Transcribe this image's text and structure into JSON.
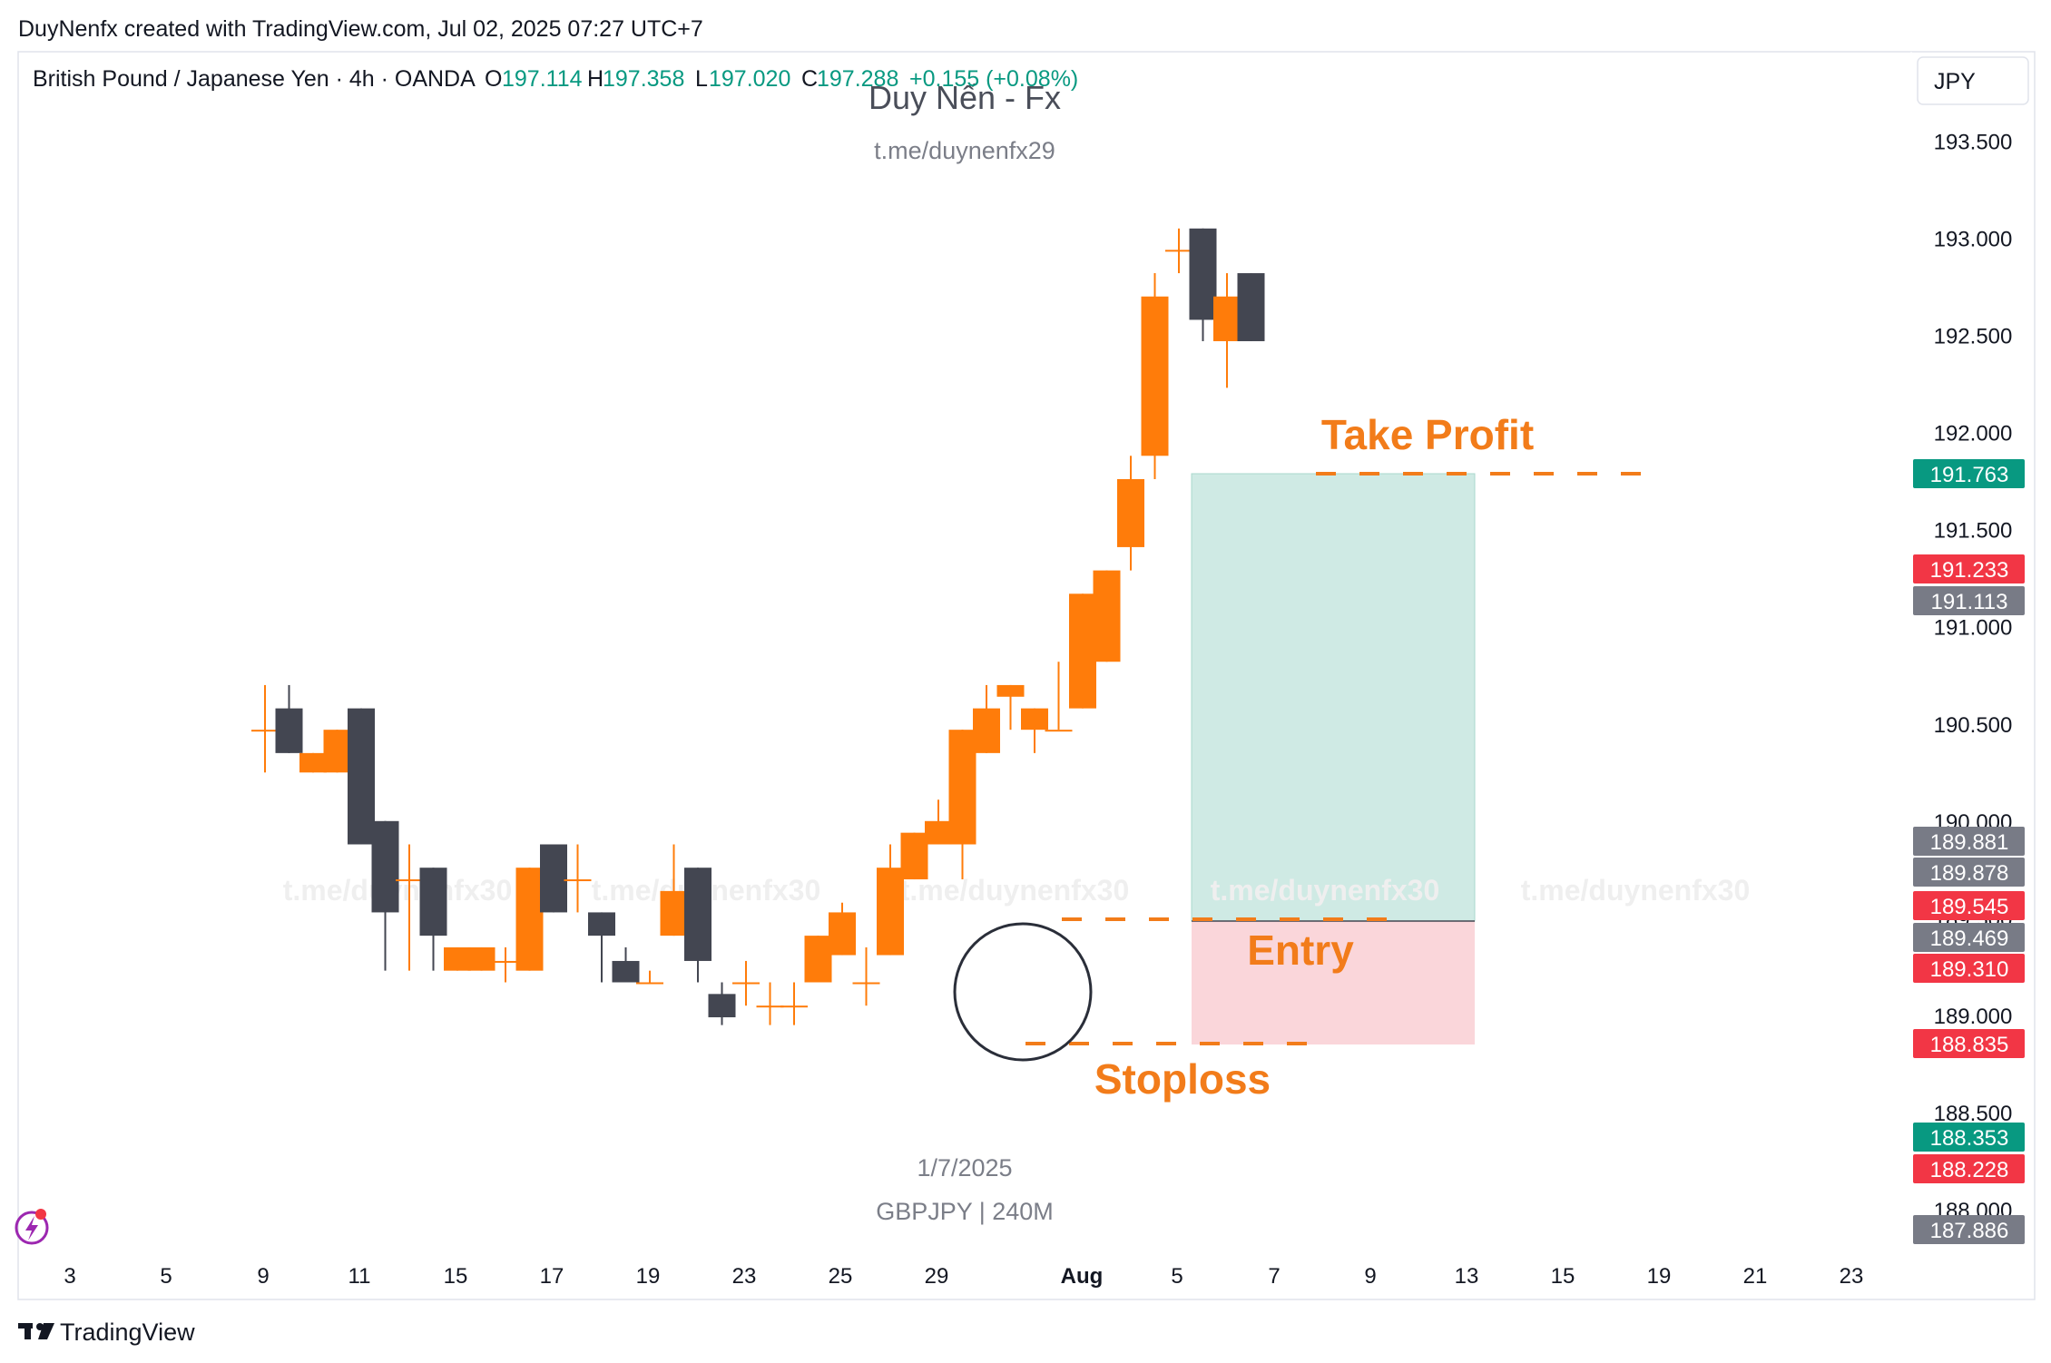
{
  "header": {
    "credit": "DuyNenfx created with TradingView.com, Jul 02, 2025 07:27 UTC+7",
    "symbol_desc": "British Pound / Japanese Yen · 4h · OANDA",
    "o_label": "O",
    "o_value": "197.114",
    "h_label": "H",
    "h_value": "197.358",
    "l_label": "L",
    "l_value": "197.020",
    "c_label": "C",
    "c_value": "197.288",
    "change": "+0.155 (+0.08%)"
  },
  "watermark": {
    "title": "Duy Nến - Fx",
    "subtitle": "t.me/duynenfx29",
    "repeat_text": "t.me/duynenfx30",
    "date": "1/7/2025",
    "symbol": "GBPJPY | 240M"
  },
  "currency_button": "JPY",
  "footer": {
    "brand": "TradingView"
  },
  "annotations": {
    "take_profit": "Take Profit",
    "entry": "Entry",
    "stoploss": "Stoploss"
  },
  "colors": {
    "bull": "#FF7C0A",
    "bear": "#434651",
    "profit_zone": "#CFEAE4",
    "loss_zone": "#FAD6DA",
    "green_label": "#089981",
    "red_label": "#F23645",
    "grey_label": "#787B86",
    "annotation": "#F27C1A"
  },
  "chart_data": {
    "type": "candlestick",
    "symbol": "GBPJPY",
    "timeframe": "4h",
    "y_range": [
      187.75,
      193.8
    ],
    "y_ticks": [
      "188.000",
      "188.500",
      "189.000",
      "189.500",
      "190.000",
      "190.500",
      "191.000",
      "191.500",
      "192.000",
      "192.500",
      "193.000",
      "193.500"
    ],
    "x_ticks": [
      "3",
      "5",
      "9",
      "11",
      "15",
      "17",
      "19",
      "23",
      "25",
      "29",
      "Aug",
      "5",
      "7",
      "9",
      "13",
      "15",
      "19",
      "21",
      "23"
    ],
    "price_labels": [
      {
        "value": "191.763",
        "color": "green"
      },
      {
        "value": "191.233",
        "color": "red"
      },
      {
        "value": "191.113",
        "color": "grey"
      },
      {
        "value": "189.881",
        "color": "grey"
      },
      {
        "value": "189.878",
        "color": "grey"
      },
      {
        "value": "189.545",
        "color": "red"
      },
      {
        "value": "189.469",
        "color": "grey"
      },
      {
        "value": "189.310",
        "color": "red"
      },
      {
        "value": "188.835",
        "color": "red"
      },
      {
        "value": "188.353",
        "color": "green"
      },
      {
        "value": "188.228",
        "color": "red"
      },
      {
        "value": "187.886",
        "color": "grey"
      }
    ],
    "candles": [
      {
        "o": 190.47,
        "h": 190.7,
        "l": 190.25,
        "c": 190.47
      },
      {
        "o": 190.58,
        "h": 190.7,
        "l": 190.35,
        "c": 190.35
      },
      {
        "o": 190.25,
        "h": 190.35,
        "l": 190.25,
        "c": 190.35
      },
      {
        "o": 190.25,
        "h": 190.47,
        "l": 190.25,
        "c": 190.47
      },
      {
        "o": 190.58,
        "h": 190.58,
        "l": 189.88,
        "c": 189.88
      },
      {
        "o": 190.0,
        "h": 190.0,
        "l": 189.23,
        "c": 189.53
      },
      {
        "o": 189.7,
        "h": 189.88,
        "l": 189.23,
        "c": 189.7
      },
      {
        "o": 189.76,
        "h": 189.76,
        "l": 189.23,
        "c": 189.41
      },
      {
        "o": 189.23,
        "h": 189.35,
        "l": 189.23,
        "c": 189.35
      },
      {
        "o": 189.23,
        "h": 189.35,
        "l": 189.23,
        "c": 189.35
      },
      {
        "o": 189.28,
        "h": 189.35,
        "l": 189.17,
        "c": 189.28
      },
      {
        "o": 189.23,
        "h": 189.76,
        "l": 189.23,
        "c": 189.76
      },
      {
        "o": 189.88,
        "h": 189.88,
        "l": 189.53,
        "c": 189.53
      },
      {
        "o": 189.7,
        "h": 189.88,
        "l": 189.53,
        "c": 189.7
      },
      {
        "o": 189.53,
        "h": 189.53,
        "l": 189.17,
        "c": 189.41
      },
      {
        "o": 189.28,
        "h": 189.35,
        "l": 189.17,
        "c": 189.17
      },
      {
        "o": 189.17,
        "h": 189.23,
        "l": 189.17,
        "c": 189.17
      },
      {
        "o": 189.41,
        "h": 189.88,
        "l": 189.41,
        "c": 189.64
      },
      {
        "o": 189.76,
        "h": 189.76,
        "l": 189.17,
        "c": 189.28
      },
      {
        "o": 189.11,
        "h": 189.17,
        "l": 188.95,
        "c": 188.99
      },
      {
        "o": 189.17,
        "h": 189.28,
        "l": 189.05,
        "c": 189.17
      },
      {
        "o": 189.05,
        "h": 189.17,
        "l": 188.95,
        "c": 189.05
      },
      {
        "o": 189.05,
        "h": 189.17,
        "l": 188.95,
        "c": 189.05
      },
      {
        "o": 189.17,
        "h": 189.41,
        "l": 189.17,
        "c": 189.41
      },
      {
        "o": 189.31,
        "h": 189.58,
        "l": 189.31,
        "c": 189.53
      },
      {
        "o": 189.17,
        "h": 189.35,
        "l": 189.05,
        "c": 189.17
      },
      {
        "o": 189.31,
        "h": 189.88,
        "l": 189.31,
        "c": 189.76
      },
      {
        "o": 189.7,
        "h": 189.94,
        "l": 189.7,
        "c": 189.94
      },
      {
        "o": 189.88,
        "h": 190.11,
        "l": 189.88,
        "c": 190.0
      },
      {
        "o": 189.88,
        "h": 190.47,
        "l": 189.7,
        "c": 190.47
      },
      {
        "o": 190.35,
        "h": 190.7,
        "l": 190.35,
        "c": 190.58
      },
      {
        "o": 190.64,
        "h": 190.7,
        "l": 190.47,
        "c": 190.7
      },
      {
        "o": 190.47,
        "h": 190.58,
        "l": 190.35,
        "c": 190.58
      },
      {
        "o": 190.47,
        "h": 190.82,
        "l": 190.47,
        "c": 190.47
      },
      {
        "o": 190.58,
        "h": 191.17,
        "l": 190.58,
        "c": 191.17
      },
      {
        "o": 190.82,
        "h": 191.29,
        "l": 190.82,
        "c": 191.29
      },
      {
        "o": 191.41,
        "h": 191.88,
        "l": 191.29,
        "c": 191.76
      },
      {
        "o": 191.88,
        "h": 192.82,
        "l": 191.76,
        "c": 192.7
      },
      {
        "o": 192.94,
        "h": 193.05,
        "l": 192.82,
        "c": 192.94
      },
      {
        "o": 193.05,
        "h": 193.05,
        "l": 192.47,
        "c": 192.58
      },
      {
        "o": 192.47,
        "h": 192.82,
        "l": 192.23,
        "c": 192.7
      },
      {
        "o": 192.82,
        "h": 192.82,
        "l": 192.47,
        "c": 192.47
      }
    ],
    "position": {
      "entry": 189.469,
      "take_profit": 191.763,
      "stoploss": 188.835
    }
  }
}
